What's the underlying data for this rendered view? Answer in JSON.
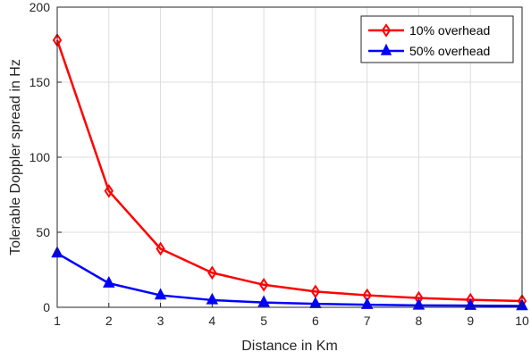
{
  "chart_data": {
    "type": "line",
    "xlabel": "Distance in Km",
    "ylabel": "Tolerable Doppler spread in Hz",
    "xlim": [
      1,
      10
    ],
    "ylim": [
      0,
      200
    ],
    "xticks": [
      1,
      2,
      3,
      4,
      5,
      6,
      7,
      8,
      9,
      10
    ],
    "yticks": [
      0,
      50,
      100,
      150,
      200
    ],
    "grid": true,
    "legend_position": "top-right",
    "x": [
      1,
      2,
      3,
      4,
      5,
      6,
      7,
      8,
      9,
      10
    ],
    "series": [
      {
        "name": "10% overhead",
        "color": "#ff0000",
        "marker": "diamond",
        "values": [
          178,
          77.5,
          39,
          23,
          15,
          10.5,
          8,
          6.2,
          5,
          4.2
        ]
      },
      {
        "name": "50% overhead",
        "color": "#0000ff",
        "marker": "triangle",
        "values": [
          36,
          16,
          8,
          4.8,
          3.2,
          2.3,
          1.7,
          1.3,
          1.1,
          0.9
        ]
      }
    ]
  }
}
